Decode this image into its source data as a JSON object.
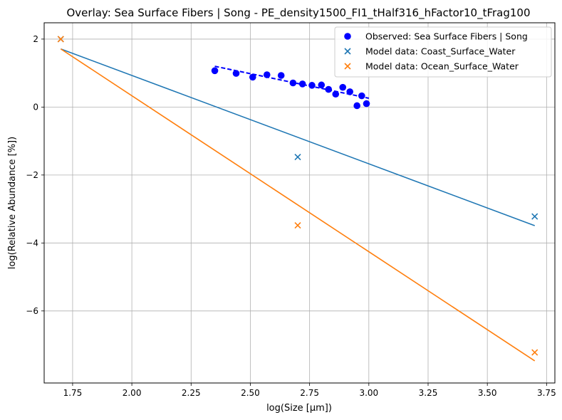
{
  "chart_data": {
    "type": "scatter",
    "title": "Overlay: Sea Surface Fibers | Song - PE_density1500_FI1_tHalf316_hFactor10_tFrag100",
    "xlabel": "log(Size [μm])",
    "ylabel": "log(Relative Abundance [%])",
    "xlim": [
      1.63,
      3.785
    ],
    "ylim": [
      -8.12,
      2.48
    ],
    "xticks": [
      1.75,
      2.0,
      2.25,
      2.5,
      2.75,
      3.0,
      3.25,
      3.5,
      3.75
    ],
    "xtick_labels": [
      "1.75",
      "2.00",
      "2.25",
      "2.50",
      "2.75",
      "3.00",
      "3.25",
      "3.50",
      "3.75"
    ],
    "yticks": [
      -6,
      -4,
      -2,
      0,
      2
    ],
    "ytick_labels": [
      "−6",
      "−4",
      "−2",
      "0",
      "2"
    ],
    "grid": true,
    "legend_position": "top-right",
    "series": [
      {
        "name": "Observed: Sea Surface Fibers | Song",
        "kind": "scatter",
        "marker": "circle",
        "color": "#0000ff",
        "x": [
          2.35,
          2.44,
          2.51,
          2.57,
          2.63,
          2.68,
          2.72,
          2.76,
          2.8,
          2.83,
          2.86,
          2.89,
          2.92,
          2.95,
          2.97,
          2.99
        ],
        "y": [
          1.07,
          0.99,
          0.88,
          0.95,
          0.93,
          0.71,
          0.68,
          0.64,
          0.65,
          0.52,
          0.38,
          0.58,
          0.45,
          0.04,
          0.33,
          0.1
        ]
      },
      {
        "name": "Model data: Coast_Surface_Water",
        "kind": "scatter",
        "marker": "x",
        "color": "#1f77b4",
        "x": [
          1.7,
          2.7,
          3.7
        ],
        "y": [
          2.0,
          -1.47,
          -3.22
        ]
      },
      {
        "name": "Model data: Ocean_Surface_Water",
        "kind": "scatter",
        "marker": "x",
        "color": "#ff7f0e",
        "x": [
          1.7,
          2.7,
          3.7
        ],
        "y": [
          2.0,
          -3.48,
          -7.22
        ]
      }
    ],
    "fit_lines": [
      {
        "color": "#0000ff",
        "style": "dashed",
        "x": [
          2.35,
          3.0
        ],
        "y": [
          1.2,
          0.26
        ]
      },
      {
        "color": "#1f77b4",
        "style": "solid",
        "x": [
          1.7,
          3.7
        ],
        "y": [
          1.71,
          -3.49
        ]
      },
      {
        "color": "#ff7f0e",
        "style": "solid",
        "x": [
          1.7,
          3.7
        ],
        "y": [
          1.71,
          -7.47
        ]
      }
    ]
  }
}
